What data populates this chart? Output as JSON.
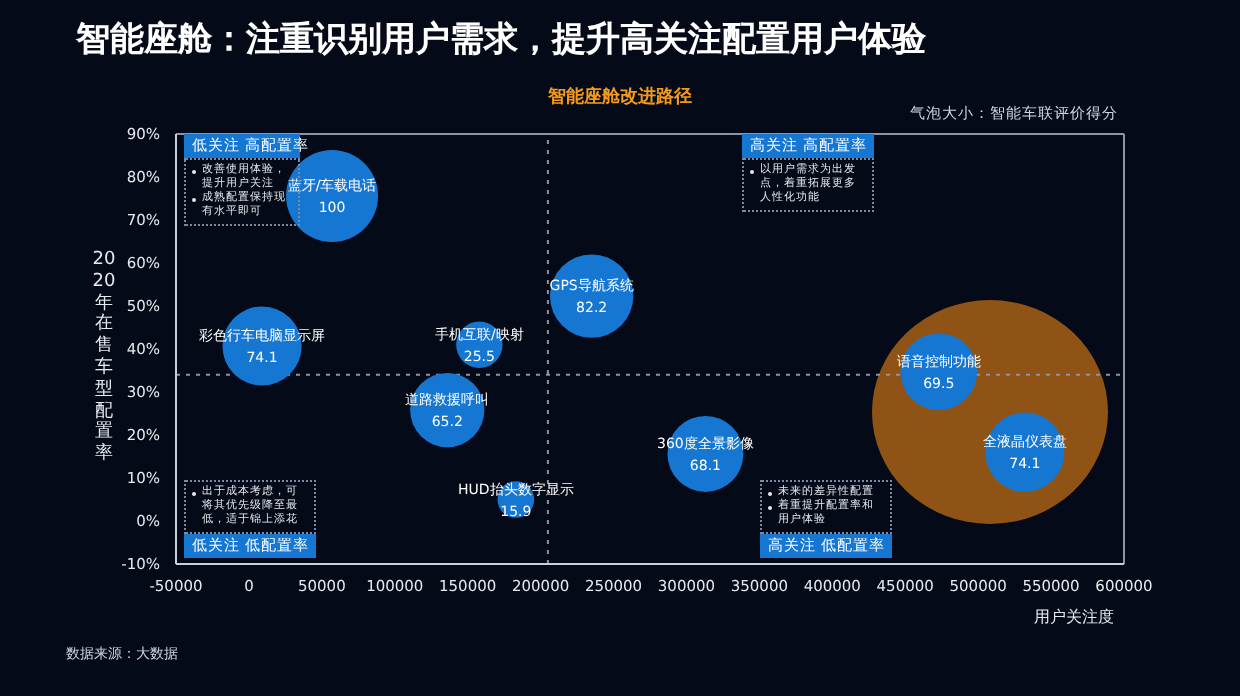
{
  "chart_data": {
    "type": "bubble",
    "title": "智能座舱：注重识别用户需求，提升高关注配置用户体验",
    "subtitle": "智能座舱改进路径",
    "xlabel": "用户关注度",
    "ylabel": "2020年在售车型配置率",
    "xlim": [
      -50000,
      600000
    ],
    "xticks": [
      -50000,
      0,
      50000,
      100000,
      150000,
      200000,
      250000,
      300000,
      350000,
      400000,
      450000,
      500000,
      550000,
      600000
    ],
    "ylim": [
      -10,
      90
    ],
    "yticks": [
      {
        "value": -10,
        "label": "-10%"
      },
      {
        "value": 0,
        "label": "0%"
      },
      {
        "value": 10,
        "label": "10%"
      },
      {
        "value": 20,
        "label": "20%"
      },
      {
        "value": 30,
        "label": "30%"
      },
      {
        "value": 40,
        "label": "40%"
      },
      {
        "value": 50,
        "label": "50%"
      },
      {
        "value": 60,
        "label": "60%"
      },
      {
        "value": 70,
        "label": "70%"
      },
      {
        "value": 80,
        "label": "80%"
      },
      {
        "value": 90,
        "label": "90%"
      }
    ],
    "series": [
      {
        "name": "蓝牙/车载电话",
        "color": "#1677d2",
        "x": [
          57000
        ],
        "values": [
          75.6
        ],
        "sizes": [
          100
        ],
        "value_labels": [
          "100"
        ]
      },
      {
        "name": "GPS导航系统",
        "color": "#1677d2",
        "x": [
          235000
        ],
        "values": [
          52.3
        ],
        "sizes": [
          82.2
        ],
        "value_labels": [
          "82.2"
        ]
      },
      {
        "name": "彩色行车电脑显示屏",
        "color": "#1677d2",
        "x": [
          9000
        ],
        "values": [
          40.7
        ],
        "sizes": [
          74.1
        ],
        "value_labels": [
          "74.1"
        ]
      },
      {
        "name": "手机互联/映射",
        "color": "#1677d2",
        "x": [
          158000
        ],
        "values": [
          41
        ],
        "sizes": [
          25.5
        ],
        "value_labels": [
          "25.5"
        ]
      },
      {
        "name": "道路救援呼叫",
        "color": "#1677d2",
        "x": [
          136000
        ],
        "values": [
          25.8
        ],
        "sizes": [
          65.2
        ],
        "value_labels": [
          "65.2"
        ]
      },
      {
        "name": "HUD抬头数字显示",
        "color": "#1677d2",
        "x": [
          183000
        ],
        "values": [
          5
        ],
        "sizes": [
          15.9
        ],
        "value_labels": [
          "15.9"
        ]
      },
      {
        "name": "360度全景影像",
        "color": "#1677d2",
        "x": [
          313000
        ],
        "values": [
          15.6
        ],
        "sizes": [
          68.1
        ],
        "value_labels": [
          "68.1"
        ]
      },
      {
        "name": "语音控制功能",
        "color": "#1677d2",
        "x": [
          473000
        ],
        "values": [
          34.7
        ],
        "sizes": [
          69.5
        ],
        "value_labels": [
          "69.5"
        ]
      },
      {
        "name": "全液晶仪表盘",
        "color": "#1677d2",
        "x": [
          532000
        ],
        "values": [
          16
        ],
        "sizes": [
          74.1
        ],
        "value_labels": [
          "74.1"
        ]
      }
    ],
    "ref_lines": [
      {
        "axis": "x",
        "value": 205000,
        "line_style": "dotted",
        "color": "#8a96a8"
      },
      {
        "axis": "y",
        "value": 34,
        "line_style": "dotted",
        "color": "#8a96a8"
      }
    ],
    "annotations": [
      "低关注 高配置率",
      "改善使用体验，提升用户关注",
      "成熟配置保持现有水平即可",
      "高关注 高配置率",
      "以用户需求为出发点，着重拓展更多人性化功能",
      "低关注 低配置率",
      "出于成本考虑，可将其优先级降至最低，适于锦上添花",
      "高关注 低配置率",
      "未来的差异性配置",
      "着重提升配置率和用户体验",
      "气泡大小：智能车联评价得分",
      "数据来源：大数据"
    ]
  }
}
